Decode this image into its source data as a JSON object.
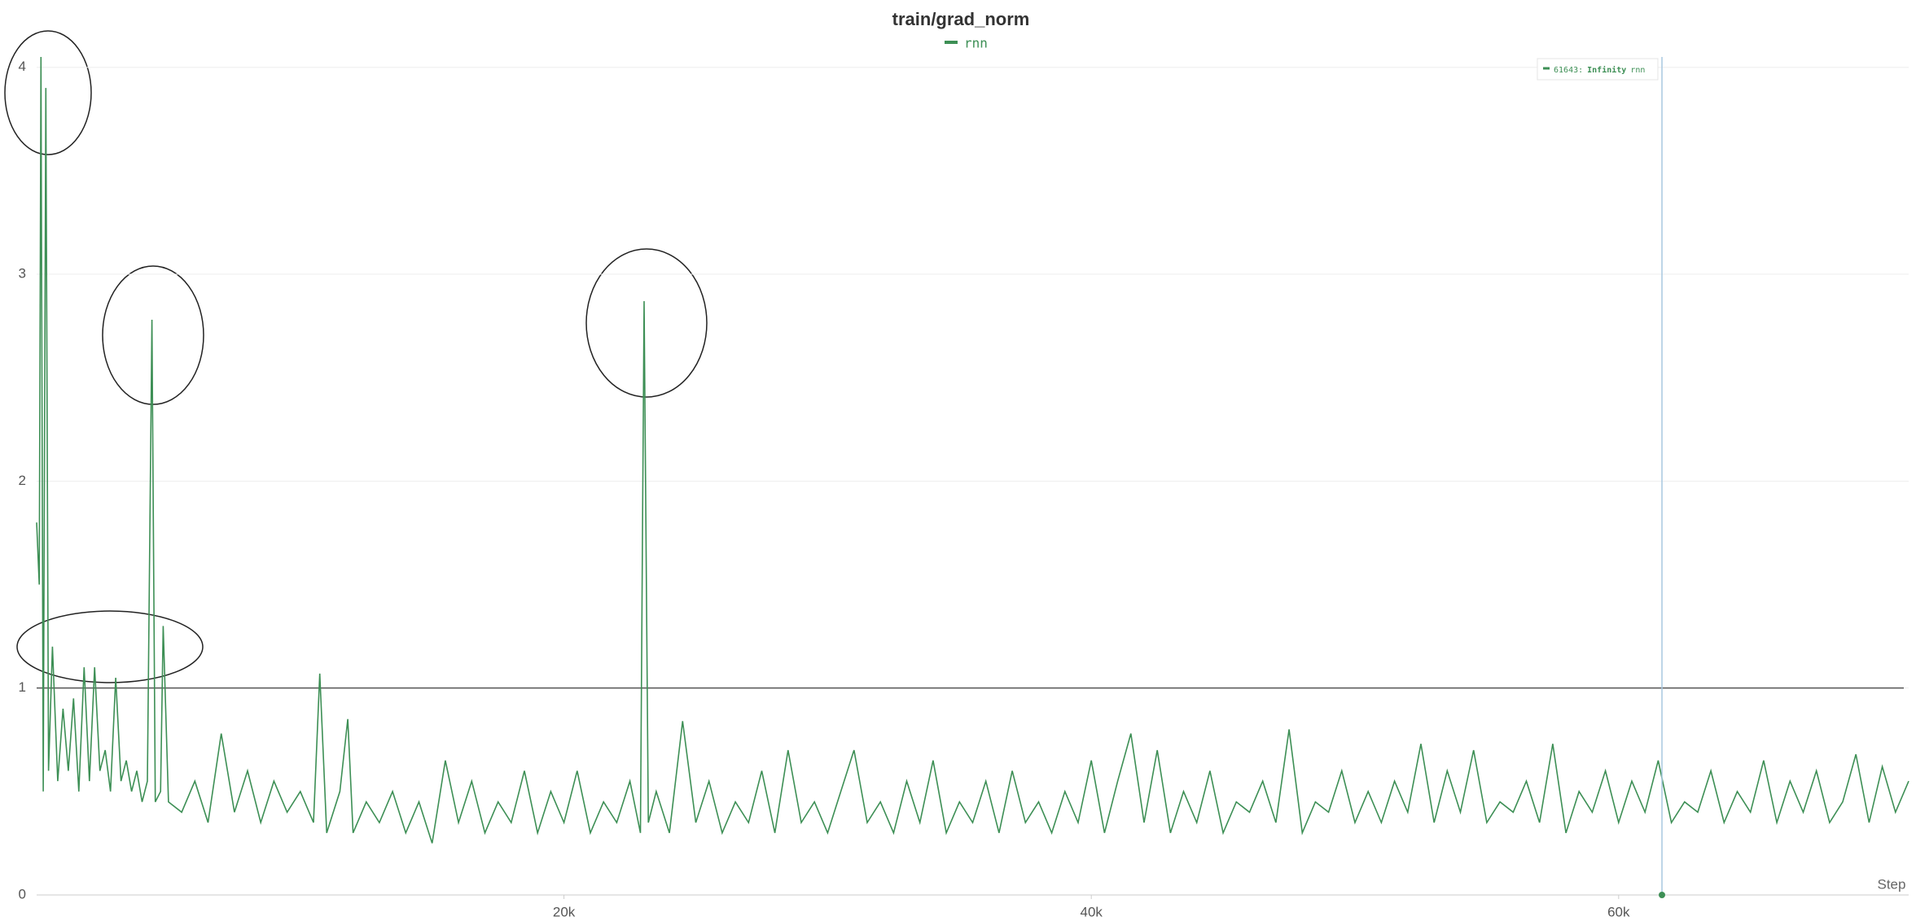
{
  "chart_data": {
    "type": "line",
    "title": "train/grad_norm",
    "x_label": "Step",
    "x": [
      0,
      100,
      164,
      250,
      350,
      450,
      600,
      800,
      1000,
      1200,
      1400,
      1600,
      1800,
      2000,
      2200,
      2400,
      2600,
      2800,
      3000,
      3200,
      3400,
      3600,
      3800,
      4000,
      4200,
      4374,
      4500,
      4700,
      4800,
      5000,
      5500,
      6000,
      6500,
      7000,
      7500,
      8000,
      8500,
      9000,
      9500,
      10000,
      10500,
      10737,
      11000,
      11500,
      11800,
      12000,
      12500,
      13000,
      13500,
      14000,
      14500,
      15000,
      15500,
      16000,
      16500,
      17000,
      17500,
      18000,
      18500,
      19000,
      19500,
      20000,
      20500,
      21000,
      21500,
      22000,
      22500,
      22900,
      23040,
      23200,
      23500,
      24000,
      24500,
      25000,
      25500,
      26000,
      26500,
      27000,
      27500,
      28000,
      28500,
      29000,
      29500,
      30000,
      30500,
      31000,
      31500,
      32000,
      32500,
      33000,
      33500,
      34000,
      34500,
      35000,
      35500,
      36000,
      36500,
      37000,
      37500,
      38000,
      38500,
      39000,
      39500,
      40000,
      40500,
      41000,
      41500,
      42000,
      42500,
      43000,
      43500,
      44000,
      44500,
      45000,
      45500,
      46000,
      46500,
      47000,
      47500,
      48000,
      48500,
      49000,
      49500,
      50000,
      50500,
      51000,
      51500,
      52000,
      52500,
      53000,
      53500,
      54000,
      54500,
      55000,
      55500,
      56000,
      56500,
      57000,
      57500,
      58000,
      58500,
      59000,
      59500,
      60000,
      60500,
      61000,
      61500,
      62000,
      62500,
      63000,
      63500,
      64000,
      64500,
      65000,
      65500,
      66000,
      66500,
      67000,
      67500,
      68000,
      68500,
      69000,
      69500,
      70000,
      70500,
      71000
    ],
    "series": [
      {
        "name": "rnn",
        "color": "#3d8f55",
        "values": [
          1.8,
          1.5,
          4.05,
          0.5,
          3.9,
          0.6,
          1.2,
          0.55,
          0.9,
          0.6,
          0.95,
          0.5,
          1.1,
          0.55,
          1.1,
          0.6,
          0.7,
          0.5,
          1.05,
          0.55,
          0.65,
          0.5,
          0.6,
          0.45,
          0.55,
          2.78,
          0.45,
          0.5,
          1.3,
          0.45,
          0.4,
          0.55,
          0.35,
          0.78,
          0.4,
          0.6,
          0.35,
          0.55,
          0.4,
          0.5,
          0.35,
          1.07,
          0.3,
          0.5,
          0.85,
          0.3,
          0.45,
          0.35,
          0.5,
          0.3,
          0.45,
          0.25,
          0.65,
          0.35,
          0.55,
          0.3,
          0.45,
          0.35,
          0.6,
          0.3,
          0.5,
          0.35,
          0.6,
          0.3,
          0.45,
          0.35,
          0.55,
          0.3,
          2.87,
          0.35,
          0.5,
          0.3,
          0.84,
          0.35,
          0.55,
          0.3,
          0.45,
          0.35,
          0.6,
          0.3,
          0.7,
          0.35,
          0.45,
          0.3,
          0.5,
          0.7,
          0.35,
          0.45,
          0.3,
          0.55,
          0.35,
          0.65,
          0.3,
          0.45,
          0.35,
          0.55,
          0.3,
          0.6,
          0.35,
          0.45,
          0.3,
          0.5,
          0.35,
          0.65,
          0.3,
          0.55,
          0.78,
          0.35,
          0.7,
          0.3,
          0.5,
          0.35,
          0.6,
          0.3,
          0.45,
          0.4,
          0.55,
          0.35,
          0.8,
          0.3,
          0.45,
          0.4,
          0.6,
          0.35,
          0.5,
          0.35,
          0.55,
          0.4,
          0.73,
          0.35,
          0.6,
          0.4,
          0.7,
          0.35,
          0.45,
          0.4,
          0.55,
          0.35,
          0.73,
          0.3,
          0.5,
          0.4,
          0.6,
          0.35,
          0.55,
          0.4,
          0.65,
          0.35,
          0.45,
          0.4,
          0.6,
          0.35,
          0.5,
          0.4,
          0.65,
          0.35,
          0.55,
          0.4,
          0.6,
          0.35,
          0.45,
          0.68,
          0.35,
          0.62,
          0.4,
          0.55
        ]
      }
    ],
    "xlim": [
      0,
      71000
    ],
    "xticks": [
      {
        "value": 20000,
        "label": "20k"
      },
      {
        "value": 40000,
        "label": "40k"
      },
      {
        "value": 60000,
        "label": "60k"
      }
    ],
    "ylim": [
      0,
      4.05
    ],
    "yticks": [
      0,
      1,
      2,
      3,
      4
    ],
    "grid": true,
    "reference_line": 1,
    "tooltip": {
      "x": 61643,
      "label": "61643:",
      "value": "Infinity"
    }
  }
}
